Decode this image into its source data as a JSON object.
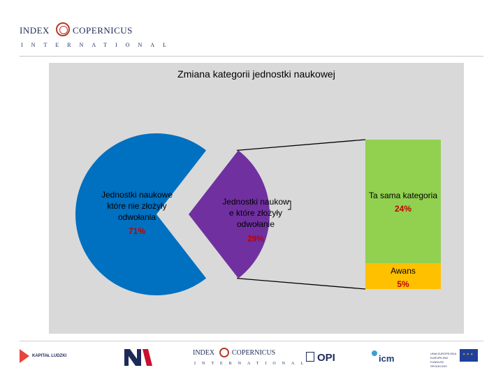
{
  "header": {
    "logo_left": "INDEX",
    "logo_right": "COPERNICUS",
    "logo_sub": "INTERNATIONAL"
  },
  "chart_data": {
    "type": "pie",
    "title": "Zmiana kategorii jednostki naukowej",
    "slices": [
      {
        "label_lines": [
          "Jednostki naukowe",
          "które nie złożyły",
          "odwołania"
        ],
        "value_label": "71%",
        "value": 71,
        "color": "#0070c0"
      },
      {
        "label_lines": [
          "Jednostki naukow",
          "e które złożyły",
          "odwołanie"
        ],
        "value_label": "29%",
        "value": 29,
        "color": "#7030a0"
      }
    ],
    "breakdown": {
      "type": "stacked-bar",
      "of": "Jednostki naukowe które złożyły odwołanie",
      "segments": [
        {
          "label": "Ta sama kategoria",
          "value_label": "24%",
          "value": 24,
          "color": "#92d050"
        },
        {
          "label": "Awans",
          "value_label": "5%",
          "value": 5,
          "color": "#ffc000"
        }
      ]
    },
    "value_label_color": "#c00000"
  },
  "footer": {
    "kapital_ludzki": "KAPITAŁ LUDZKI",
    "index_left": "INDEX",
    "index_right": "COPERNICUS",
    "index_sub": "INTERNATIONAL",
    "opi": "OPI",
    "icm": "icm",
    "ue": "UNIA EUROPEJSKA EUROPEJSKI FUNDUSZ SPOŁECZNY"
  }
}
